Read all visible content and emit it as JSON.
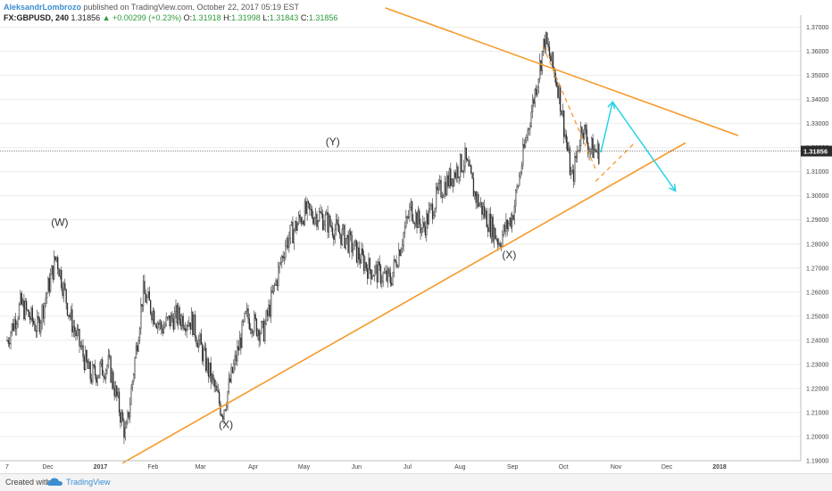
{
  "header": {
    "author": "AleksandrLombrozo",
    "published": "published on TradingView.com, October 22, 2017 05:19 EST",
    "symbol": "FX:GBPUSD, 240",
    "last": "1.31856",
    "change": "▲ +0.00299 (+0.23%)",
    "o_label": "O:",
    "o_value": "1.31918",
    "h_label": "H:",
    "h_value": "1.31998",
    "l_label": "L:",
    "l_value": "1.31843",
    "c_label": "C:",
    "c_value": "1.31856"
  },
  "footer": {
    "created": "Created with",
    "brand": "TradingView",
    "logo_icon": "tradingview-cloud-icon"
  },
  "colors": {
    "trendline": "#f59a2a",
    "projection": "#27d3e8",
    "candle": "#2b2b2b",
    "price_tag": "#2b2b2b"
  },
  "chart_data": {
    "type": "candlestick",
    "symbol": "GBPUSD",
    "timeframe": "240",
    "ylim": [
      1.19,
      1.375
    ],
    "y_ticks": [
      "1.37000",
      "1.36000",
      "1.35000",
      "1.34000",
      "1.33000",
      "1.32000",
      "1.31000",
      "1.30000",
      "1.29000",
      "1.28000",
      "1.27000",
      "1.26000",
      "1.25000",
      "1.24000",
      "1.23000",
      "1.22000",
      "1.21000",
      "1.20000",
      "1.19000"
    ],
    "x_ticks": [
      "7",
      "Dec",
      "2017",
      "Feb",
      "Mar",
      "Apr",
      "May",
      "Jun",
      "Jul",
      "Aug",
      "Sep",
      "Oct",
      "Nov",
      "Dec",
      "2018"
    ],
    "current_price": "1.31856",
    "price_path": [
      [
        "2016-11-07",
        1.24
      ],
      [
        "2016-11-15",
        1.255
      ],
      [
        "2016-11-25",
        1.245
      ],
      [
        "2016-12-06",
        1.275
      ],
      [
        "2016-12-14",
        1.25
      ],
      [
        "2016-12-26",
        1.225
      ],
      [
        "2017-01-06",
        1.23
      ],
      [
        "2017-01-16",
        1.2
      ],
      [
        "2017-01-26",
        1.26
      ],
      [
        "2017-02-06",
        1.245
      ],
      [
        "2017-02-14",
        1.25
      ],
      [
        "2017-02-24",
        1.248
      ],
      [
        "2017-03-14",
        1.21
      ],
      [
        "2017-03-28",
        1.25
      ],
      [
        "2017-04-07",
        1.243
      ],
      [
        "2017-04-20",
        1.28
      ],
      [
        "2017-05-01",
        1.293
      ],
      [
        "2017-05-10",
        1.292
      ],
      [
        "2017-05-26",
        1.282
      ],
      [
        "2017-06-08",
        1.27
      ],
      [
        "2017-06-21",
        1.265
      ],
      [
        "2017-07-03",
        1.295
      ],
      [
        "2017-07-10",
        1.286
      ],
      [
        "2017-07-20",
        1.302
      ],
      [
        "2017-08-04",
        1.315
      ],
      [
        "2017-08-10",
        1.3
      ],
      [
        "2017-08-24",
        1.281
      ],
      [
        "2017-09-01",
        1.292
      ],
      [
        "2017-09-08",
        1.32
      ],
      [
        "2017-09-20",
        1.365
      ],
      [
        "2017-09-28",
        1.345
      ],
      [
        "2017-10-06",
        1.306
      ],
      [
        "2017-10-12",
        1.33
      ],
      [
        "2017-10-16",
        1.32
      ],
      [
        "2017-10-22",
        1.318
      ]
    ],
    "wave_labels": [
      {
        "text": "(W)",
        "date": "2016-12-08",
        "price": 1.2875
      },
      {
        "text": "(Y)",
        "date": "2017-05-18",
        "price": 1.321
      },
      {
        "text": "(X)",
        "date": "2017-03-16",
        "price": 1.2035
      },
      {
        "text": "(X)",
        "date": "2017-08-30",
        "price": 1.274
      }
    ],
    "trendlines": [
      {
        "name": "upper-resistance",
        "from": [
          "2017-06-18",
          1.378
        ],
        "to": [
          "2018-01-12",
          1.325
        ]
      },
      {
        "name": "lower-support",
        "from": [
          "2017-01-14",
          1.189
        ],
        "to": [
          "2017-12-12",
          1.322
        ]
      },
      {
        "name": "wedge-top",
        "from": [
          "2017-09-19",
          1.362
        ],
        "to": [
          "2017-10-20",
          1.311
        ]
      },
      {
        "name": "wedge-bottom",
        "from": [
          "2017-10-20",
          1.306
        ],
        "to": [
          "2017-11-12",
          1.322
        ]
      }
    ],
    "projection_path": [
      [
        "2017-10-23",
        1.318
      ],
      [
        "2017-10-30",
        1.339
      ],
      [
        "2017-12-06",
        1.302
      ]
    ]
  }
}
